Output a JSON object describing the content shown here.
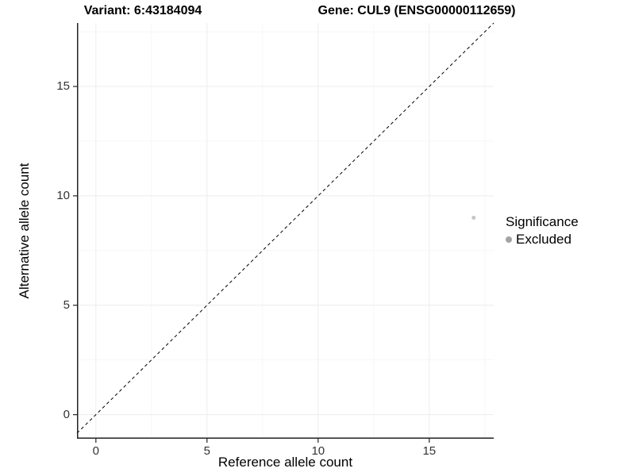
{
  "header": {
    "variant_title": "Variant: 6:43184094",
    "gene_title": "Gene: CUL9 (ENSG00000112659)"
  },
  "chart_data": {
    "type": "scatter",
    "title": "Variant: 6:43184094 / Gene: CUL9 (ENSG00000112659)",
    "xlabel": "Reference allele count",
    "ylabel": "Alternative allele count",
    "xlim": [
      -0.85,
      17.9
    ],
    "ylim": [
      -1.1,
      17.9
    ],
    "x_major_ticks": [
      0,
      5,
      10,
      15
    ],
    "y_major_ticks": [
      0,
      5,
      10,
      15
    ],
    "x_minor_ticks": [
      2.5,
      7.5,
      12.5,
      17.5
    ],
    "y_minor_ticks": [
      2.5,
      7.5,
      12.5,
      17.5
    ],
    "grid": true,
    "points": [
      {
        "x": 17,
        "y": 9,
        "significance": "Excluded"
      }
    ],
    "reference_line": {
      "slope": 1,
      "intercept": 0,
      "style": "dashed"
    },
    "legend": {
      "position": "right",
      "title": "Significance",
      "entries": [
        {
          "label": "Excluded",
          "color": "#a3a3a3"
        }
      ]
    },
    "colors": {
      "point": "#c6c6c6",
      "grid_major": "#ececec",
      "grid_minor": "#f6f6f6",
      "axis": "#222222",
      "tick_text": "#333333",
      "dashed_line": "#000000",
      "background": "#ffffff"
    }
  }
}
